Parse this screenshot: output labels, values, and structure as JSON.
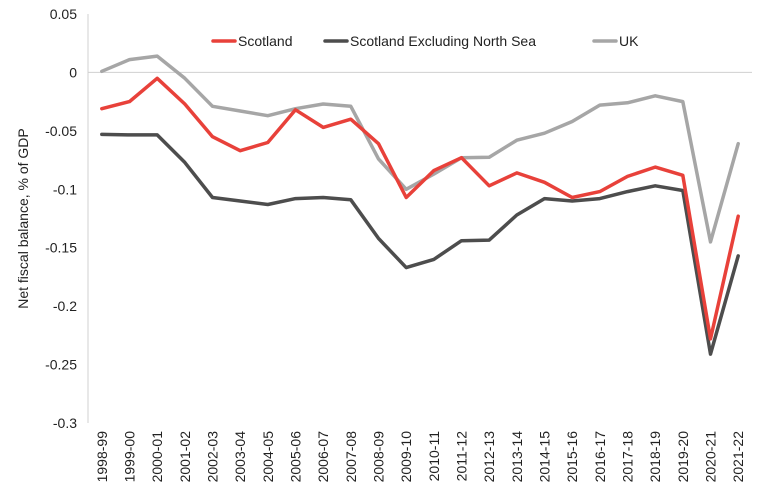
{
  "chart_data": {
    "type": "line",
    "title": "",
    "xlabel": "",
    "ylabel": "Net fiscal balance, % of GDP",
    "ylim": [
      -0.3,
      0.05
    ],
    "yticks": [
      0.05,
      0,
      -0.05,
      -0.1,
      -0.15,
      -0.2,
      -0.25,
      -0.3
    ],
    "ytick_labels": [
      "0.05",
      "0",
      "-0.05",
      "-0.1",
      "-0.15",
      "-0.2",
      "-0.25",
      "-0.3"
    ],
    "grid": false,
    "legend_position": "top",
    "categories": [
      "1998-99",
      "1999-00",
      "2000-01",
      "2001-02",
      "2002-03",
      "2003-04",
      "2004-05",
      "2005-06",
      "2006-07",
      "2007-08",
      "2008-09",
      "2009-10",
      "2010-11",
      "2011-12",
      "2012-13",
      "2013-14",
      "2014-15",
      "2015-16",
      "2016-17",
      "2017-18",
      "2018-19",
      "2019-20",
      "2020-21",
      "2021-22"
    ],
    "series": [
      {
        "name": "Scotland",
        "color": "#e8413a",
        "values": [
          -0.031,
          -0.025,
          -0.005,
          -0.027,
          -0.055,
          -0.067,
          -0.06,
          -0.032,
          -0.047,
          -0.04,
          -0.061,
          -0.107,
          -0.084,
          -0.073,
          -0.097,
          -0.086,
          -0.094,
          -0.107,
          -0.102,
          -0.089,
          -0.081,
          -0.088,
          -0.228,
          -0.123
        ]
      },
      {
        "name": "Scotland Excluding North Sea",
        "color": "#4d4d4d",
        "values": [
          -0.053,
          -0.0535,
          -0.0535,
          -0.077,
          -0.107,
          -0.11,
          -0.113,
          -0.108,
          -0.107,
          -0.109,
          -0.142,
          -0.167,
          -0.16,
          -0.144,
          -0.1435,
          -0.122,
          -0.108,
          -0.11,
          -0.108,
          -0.102,
          -0.097,
          -0.101,
          -0.241,
          -0.157
        ]
      },
      {
        "name": "UK",
        "color": "#a6a6a6",
        "values": [
          0.001,
          0.011,
          0.014,
          -0.005,
          -0.029,
          -0.033,
          -0.037,
          -0.031,
          -0.027,
          -0.029,
          -0.074,
          -0.1,
          -0.087,
          -0.073,
          -0.0725,
          -0.058,
          -0.052,
          -0.042,
          -0.028,
          -0.026,
          -0.02,
          -0.025,
          -0.145,
          -0.061
        ]
      }
    ]
  }
}
